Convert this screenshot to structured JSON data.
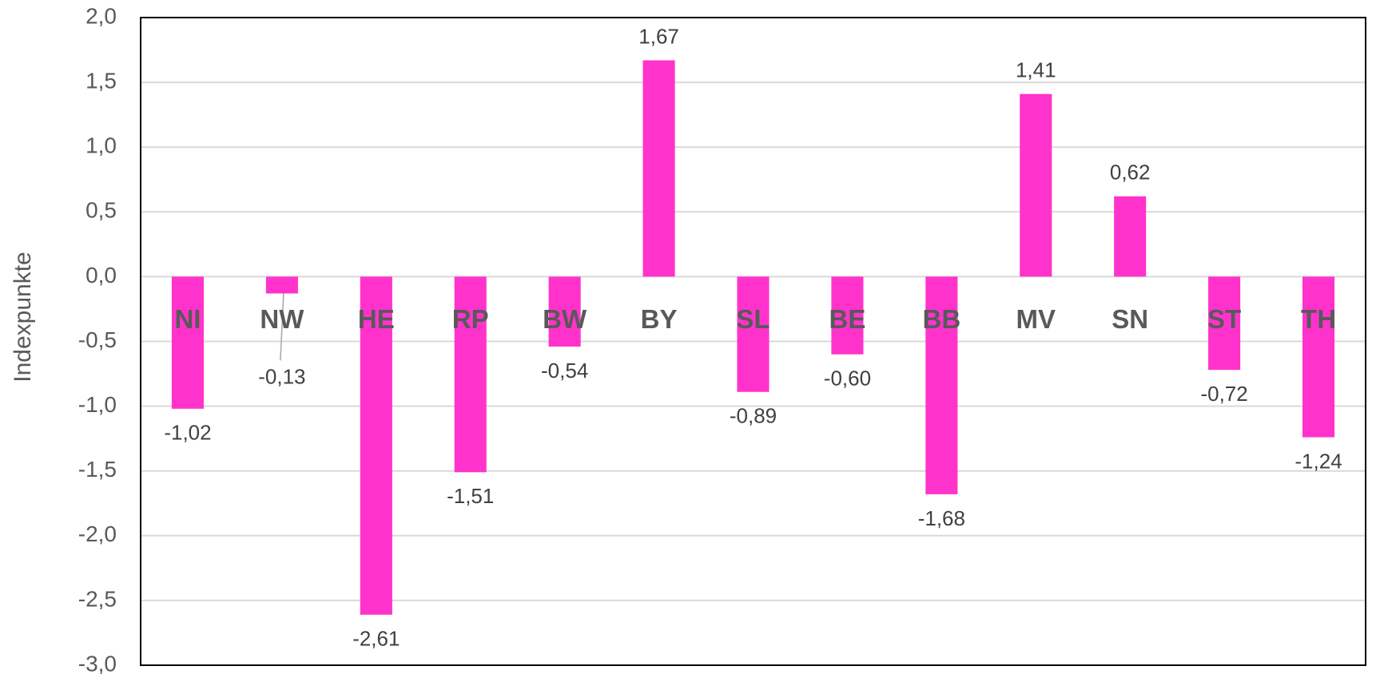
{
  "chart_data": {
    "type": "bar",
    "y_label": "Indexpunkte",
    "categories": [
      "NI",
      "NW",
      "HE",
      "RP",
      "BW",
      "BY",
      "SL",
      "BE",
      "BB",
      "MV",
      "SN",
      "ST",
      "TH"
    ],
    "values": [
      -1.02,
      -0.13,
      -2.61,
      -1.51,
      -0.54,
      1.67,
      -0.89,
      -0.6,
      -1.68,
      1.41,
      0.62,
      -0.72,
      -1.24
    ],
    "value_labels": [
      "-1,02",
      "-0,13",
      "-2,61",
      "-1,51",
      "-0,54",
      "1,67",
      "-0,89",
      "-0,60",
      "-1,68",
      "1,41",
      "0,62",
      "-0,72",
      "-1,24"
    ],
    "color": "#ff33cc",
    "ylim": [
      -3,
      2
    ],
    "yticks": [
      {
        "value": -3,
        "label": "-3,0"
      },
      {
        "value": -2.5,
        "label": "-2,5"
      },
      {
        "value": -2,
        "label": "-2,0"
      },
      {
        "value": -1.5,
        "label": "-1,5"
      },
      {
        "value": -1,
        "label": "-1,0"
      },
      {
        "value": -0.5,
        "label": "-0,5"
      },
      {
        "value": 0,
        "label": "0,0"
      },
      {
        "value": 0.5,
        "label": "0,5"
      },
      {
        "value": 1,
        "label": "1,0"
      },
      {
        "value": 1.5,
        "label": "1,5"
      },
      {
        "value": 2,
        "label": "2,0"
      }
    ],
    "grid": true
  }
}
